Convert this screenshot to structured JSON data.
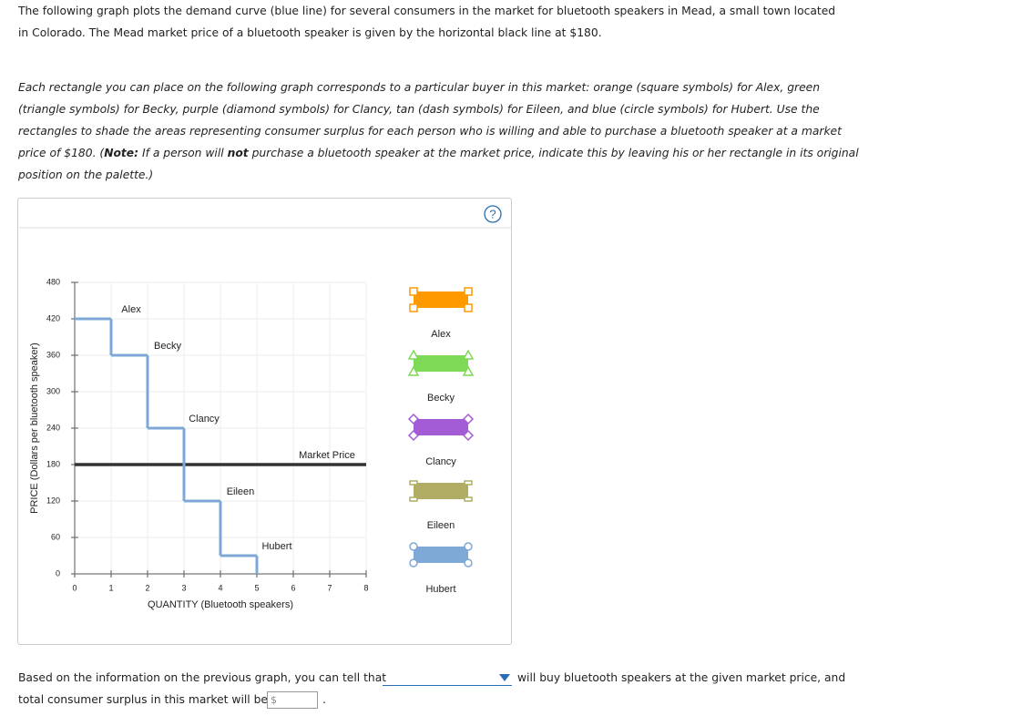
{
  "instructions": {
    "paragraph_1": "The following graph plots the demand curve (blue line) for several consumers in the market for bluetooth speakers in Mead, a small town located in Colorado. The Mead market price of a bluetooth speaker is given by the horizontal black line at $180.",
    "paragraph_2": [
      "Each rectangle you can place on the following graph corresponds to a particular buyer in this market: orange (square symbols) for Alex, green (triangle symbols) for Becky, purple (diamond symbols) for Clancy, tan (dash symbols) for Eileen, and blue (circle symbols) for Hubert. Use the rectangles to shade the areas representing consumer surplus for each person who is willing and able to purchase a bluetooth speaker at a market price of $180. (",
      "Note:",
      " If a person will ",
      "not",
      " purchase a bluetooth speaker at the market price, indicate this by leaving his or her rectangle in its original position on the palette.)"
    ]
  },
  "graph": {
    "help": "?",
    "y_label": "PRICE (Dollars per bluetooth speaker)",
    "x_label": "QUANTITY (Bluetooth speakers)",
    "xlim": [
      0,
      8
    ],
    "ylim": [
      0,
      480
    ],
    "xticks": [
      0,
      1,
      2,
      3,
      4,
      5,
      6,
      7,
      8
    ],
    "yticks": [
      0,
      60,
      120,
      180,
      240,
      300,
      360,
      420,
      480
    ],
    "grid": true,
    "demand_color": "#7ea9d6",
    "consumers": [
      {
        "name": "Alex",
        "quantity": [
          0,
          1
        ],
        "price": 420,
        "color": "#ff9900",
        "symbol": "square"
      },
      {
        "name": "Becky",
        "quantity": [
          1,
          2
        ],
        "price": 360,
        "color": "#7ed957",
        "symbol": "triangle"
      },
      {
        "name": "Clancy",
        "quantity": [
          2,
          3
        ],
        "price": 240,
        "color": "#a35bd6",
        "symbol": "diamond"
      },
      {
        "name": "Eileen",
        "quantity": [
          3,
          4
        ],
        "price": 120,
        "color": "#b0ac63",
        "symbol": "dash"
      },
      {
        "name": "Hubert",
        "quantity": [
          4,
          5
        ],
        "price": 30,
        "color": "#7ea9d6",
        "symbol": "circle"
      }
    ],
    "market_price": {
      "label": "Market Price",
      "value": 180,
      "color": "#333333"
    }
  },
  "question": {
    "line_1_start": "Based on the information on the previous graph, you can tell that",
    "line_1_end": "will buy bluetooth speakers at the given market price, and",
    "line_2_start": "total consumer surplus in this market will be",
    "currency": "$",
    "line_2_end": "."
  }
}
